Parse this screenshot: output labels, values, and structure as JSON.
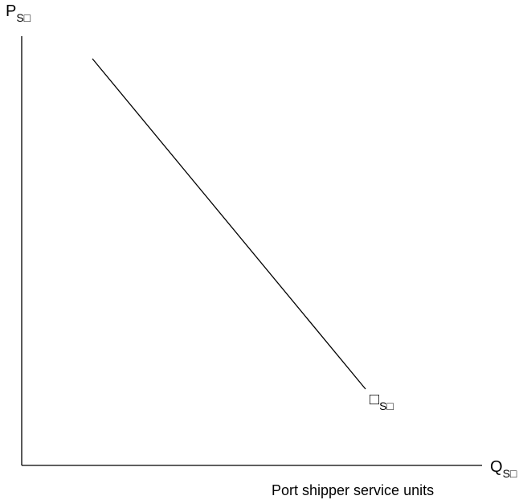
{
  "y_axis": {
    "symbol": "P",
    "subscript": "S□"
  },
  "x_axis": {
    "symbol": "Q",
    "subscript": "S□",
    "caption": "Port shipper service units"
  },
  "curve": {
    "symbol": "□",
    "subscript": "S□"
  },
  "colors": {
    "line": "#000000",
    "background": "#ffffff"
  }
}
